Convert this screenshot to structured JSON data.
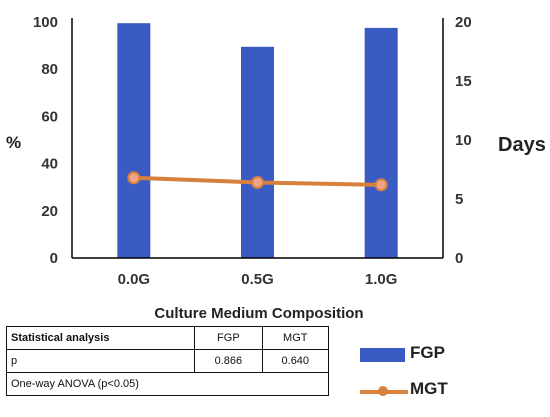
{
  "chart_data": {
    "type": "bar+line",
    "categories": [
      "0.0G",
      "0.5G",
      "1.0G"
    ],
    "series": [
      {
        "name": "FGP",
        "type": "bar",
        "axis": "left",
        "values": [
          99.5,
          89.5,
          97.5
        ],
        "color": "#3B5BC4"
      },
      {
        "name": "MGT",
        "type": "line",
        "axis": "right",
        "values": [
          6.8,
          6.4,
          6.2
        ],
        "color": "#D7813C"
      }
    ],
    "xlabel": "Culture Medium Composition",
    "ylabel_left": "%",
    "ylabel_right": "Days",
    "ylim_left": [
      0,
      100
    ],
    "ylim_right": [
      0,
      20
    ],
    "yticks_left": [
      "0",
      "20",
      "40",
      "60",
      "80",
      "100"
    ],
    "yticks_right": [
      "0",
      "5",
      "10",
      "15",
      "20"
    ],
    "legend": [
      "FGP",
      "MGT"
    ],
    "legend_placement": "bottom-right",
    "grid": false
  },
  "table": {
    "header": [
      "Statistical analysis",
      "FGP",
      "MGT"
    ],
    "rows": [
      [
        "p",
        "0.866",
        "0.640"
      ]
    ],
    "footer": "One-way ANOVA (p<0.05)"
  }
}
